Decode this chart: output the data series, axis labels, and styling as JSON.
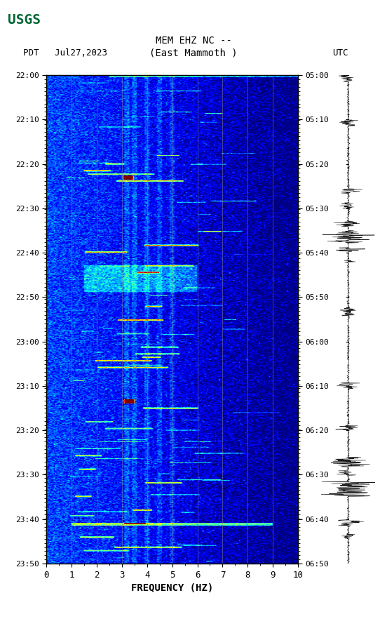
{
  "title_line1": "MEM EHZ NC --",
  "title_line2": "(East Mammoth )",
  "left_label": "PDT   Jul27,2023",
  "right_label": "UTC",
  "xlabel": "FREQUENCY (HZ)",
  "freq_min": 0,
  "freq_max": 10,
  "freq_ticks": [
    0,
    1,
    2,
    3,
    4,
    5,
    6,
    7,
    8,
    9,
    10
  ],
  "time_ticks_pdt": [
    "22:00",
    "22:10",
    "22:20",
    "22:30",
    "22:40",
    "22:50",
    "23:00",
    "23:10",
    "23:20",
    "23:30",
    "23:40",
    "23:50"
  ],
  "time_ticks_utc": [
    "05:00",
    "05:10",
    "05:20",
    "05:30",
    "05:40",
    "05:50",
    "06:00",
    "06:10",
    "06:20",
    "06:30",
    "06:40",
    "06:50"
  ],
  "bg_color": "#ffffff",
  "vertical_lines_color": "#888888",
  "vertical_lines_freq": [
    1,
    2,
    3,
    4,
    5,
    6,
    7,
    8,
    9
  ],
  "colormap": "jet",
  "vmin": -2,
  "vmax": 3,
  "seed": 42,
  "fig_width": 5.52,
  "fig_height": 8.92
}
